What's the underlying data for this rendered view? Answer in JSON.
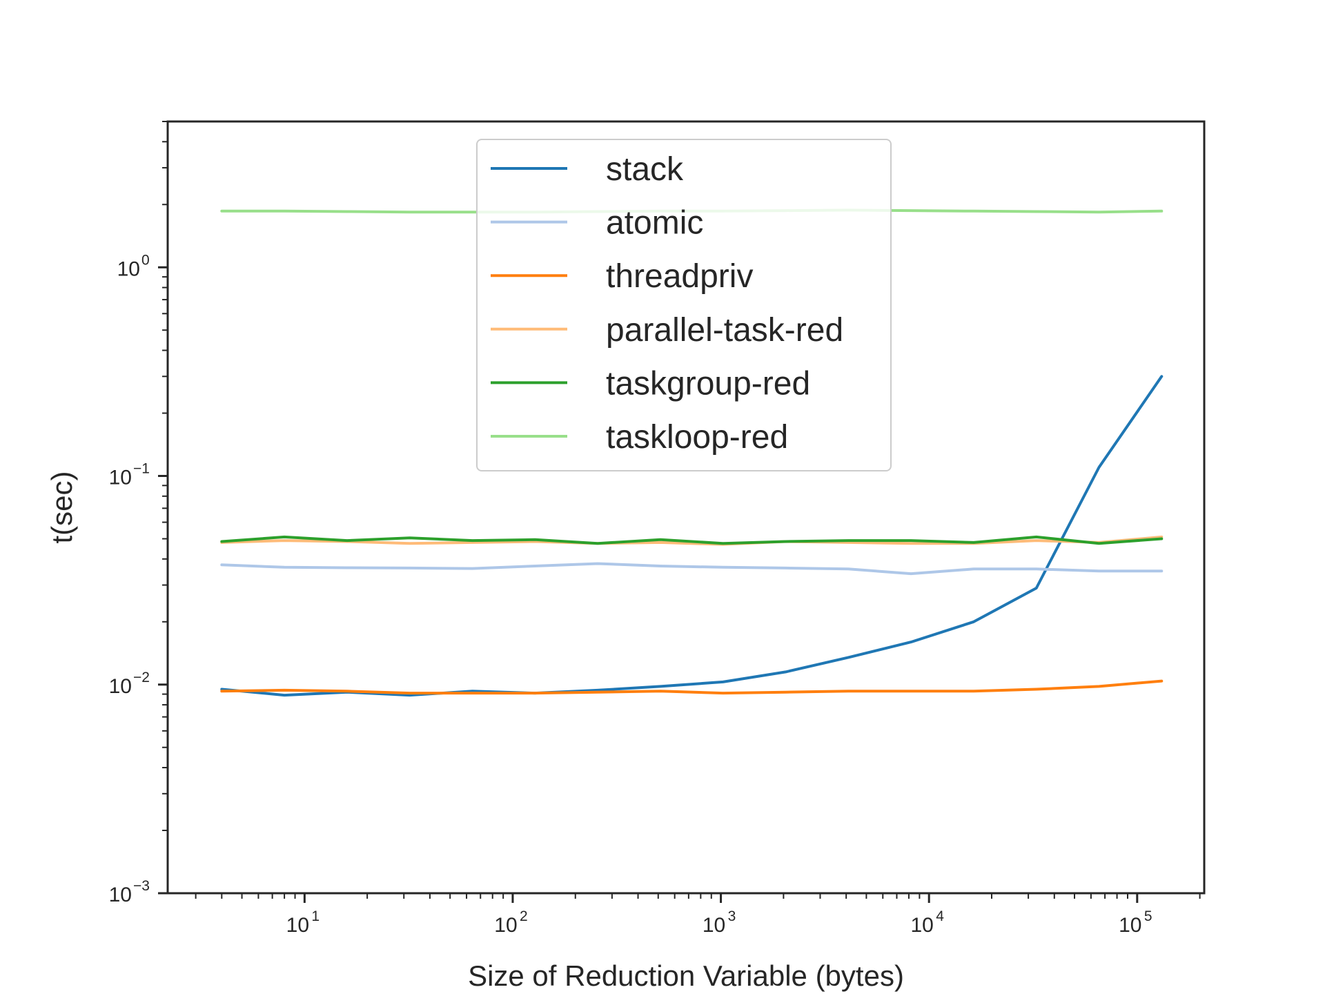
{
  "chart_data": {
    "type": "line",
    "title": "",
    "xlabel": "Size of Reduction Variable (bytes)",
    "ylabel": "t(sec)",
    "xscale": "log",
    "yscale": "log",
    "xlim": [
      2.2,
      210000
    ],
    "ylim": [
      0.001,
      5
    ],
    "grid": false,
    "legend_position": "upper-center",
    "x": [
      4,
      8,
      16,
      32,
      64,
      128,
      256,
      512,
      1024,
      2048,
      4096,
      8192,
      16384,
      32768,
      65536,
      131072
    ],
    "x_ticks": [
      {
        "value": 10,
        "base": "10",
        "exp": "1"
      },
      {
        "value": 100,
        "base": "10",
        "exp": "2"
      },
      {
        "value": 1000,
        "base": "10",
        "exp": "3"
      },
      {
        "value": 10000,
        "base": "10",
        "exp": "4"
      },
      {
        "value": 100000,
        "base": "10",
        "exp": "5"
      }
    ],
    "y_ticks": [
      {
        "value": 0.001,
        "base": "10",
        "exp": "−3"
      },
      {
        "value": 0.01,
        "base": "10",
        "exp": "−2"
      },
      {
        "value": 0.1,
        "base": "10",
        "exp": "−1"
      },
      {
        "value": 1,
        "base": "10",
        "exp": "0"
      }
    ],
    "series": [
      {
        "name": "stack",
        "color": "#1f77b4",
        "values": [
          0.0095,
          0.0089,
          0.0092,
          0.0089,
          0.0093,
          0.0091,
          0.0094,
          0.0098,
          0.0103,
          0.0115,
          0.0135,
          0.016,
          0.02,
          0.029,
          0.11,
          0.3
        ]
      },
      {
        "name": "atomic",
        "color": "#aec7e8",
        "values": [
          0.0375,
          0.0365,
          0.0363,
          0.0362,
          0.036,
          0.037,
          0.038,
          0.037,
          0.0365,
          0.0362,
          0.0358,
          0.034,
          0.0358,
          0.0358,
          0.035,
          0.035
        ]
      },
      {
        "name": "threadpriv",
        "color": "#ff7f0e",
        "values": [
          0.0093,
          0.0094,
          0.0093,
          0.0091,
          0.0091,
          0.0091,
          0.0092,
          0.0093,
          0.0091,
          0.0092,
          0.0093,
          0.0093,
          0.0093,
          0.0095,
          0.0098,
          0.0104
        ]
      },
      {
        "name": "parallel-task-red",
        "color": "#ffbb78",
        "values": [
          0.048,
          0.049,
          0.0485,
          0.0475,
          0.048,
          0.0485,
          0.0475,
          0.048,
          0.047,
          0.0485,
          0.048,
          0.0475,
          0.0475,
          0.049,
          0.048,
          0.051
        ]
      },
      {
        "name": "taskgroup-red",
        "color": "#2ca02c",
        "values": [
          0.0485,
          0.051,
          0.049,
          0.0505,
          0.049,
          0.0495,
          0.0475,
          0.0495,
          0.0475,
          0.0485,
          0.049,
          0.049,
          0.048,
          0.051,
          0.0475,
          0.05
        ]
      },
      {
        "name": "taskloop-red",
        "color": "#98df8a",
        "values": [
          1.86,
          1.86,
          1.85,
          1.84,
          1.84,
          1.84,
          1.85,
          1.86,
          1.86,
          1.87,
          1.88,
          1.87,
          1.86,
          1.85,
          1.84,
          1.86
        ]
      }
    ]
  }
}
